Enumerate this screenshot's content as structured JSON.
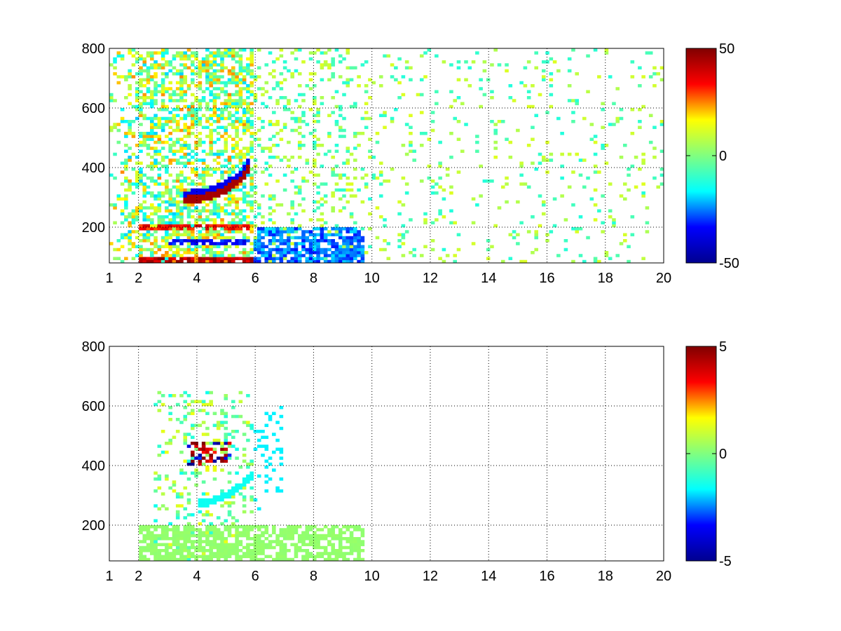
{
  "figure": {
    "background": "#ffffff"
  },
  "colormap": {
    "name": "jet",
    "stops": [
      "#00008f",
      "#0000ff",
      "#00ffff",
      "#80ff80",
      "#ffff00",
      "#ff0000",
      "#800000"
    ]
  },
  "chart_data": [
    {
      "type": "heatmap",
      "title": "",
      "xlabel": "",
      "ylabel": "",
      "xlim": [
        1,
        20
      ],
      "ylim": [
        80,
        800
      ],
      "xticks": [
        1,
        2,
        4,
        6,
        8,
        10,
        12,
        14,
        16,
        18,
        20
      ],
      "xtick_labels": [
        "1",
        "2",
        "4",
        "6",
        "8",
        "10",
        "12",
        "14",
        "16",
        "18",
        "20"
      ],
      "yticks": [
        200,
        400,
        600,
        800
      ],
      "ytick_labels": [
        "200",
        "400",
        "600",
        "800"
      ],
      "grid": true,
      "color_range": [
        -50,
        50
      ],
      "colorbar_ticks": [
        -50,
        0,
        50
      ],
      "colorbar_labels": [
        "-50",
        "0",
        "50"
      ],
      "colorbar_position": "right",
      "features": [
        {
          "desc": "arc",
          "x": [
            3.5,
            4.0,
            4.5,
            5.0,
            5.5,
            5.8
          ],
          "y": [
            290,
            295,
            305,
            325,
            360,
            400
          ],
          "value": 45
        },
        {
          "desc": "band",
          "y": 90,
          "x_range": [
            2.0,
            6.0
          ],
          "value": 50
        },
        {
          "desc": "band",
          "y": 200,
          "x_range": [
            2.0,
            6.0
          ],
          "value": 40
        },
        {
          "desc": "block",
          "x_range": [
            6.0,
            9.8
          ],
          "y_range": [
            80,
            200
          ],
          "value": -30
        },
        {
          "desc": "band",
          "y": 150,
          "x_range": [
            3.0,
            5.8
          ],
          "value": -40
        }
      ]
    },
    {
      "type": "heatmap",
      "title": "",
      "xlabel": "",
      "ylabel": "",
      "xlim": [
        1,
        20
      ],
      "ylim": [
        80,
        800
      ],
      "xticks": [
        1,
        2,
        4,
        6,
        8,
        10,
        12,
        14,
        16,
        18,
        20
      ],
      "xtick_labels": [
        "1",
        "2",
        "4",
        "6",
        "8",
        "10",
        "12",
        "14",
        "16",
        "18",
        "20"
      ],
      "yticks": [
        200,
        400,
        600,
        800
      ],
      "ytick_labels": [
        "200",
        "400",
        "600",
        "800"
      ],
      "grid": true,
      "color_range": [
        -5,
        5
      ],
      "colorbar_ticks": [
        -5,
        0,
        5
      ],
      "colorbar_labels": [
        "-5",
        "0",
        "5"
      ],
      "colorbar_position": "right",
      "features": [
        {
          "desc": "block",
          "x_range": [
            2.0,
            9.8
          ],
          "y_range": [
            80,
            200
          ],
          "value": 0.3
        },
        {
          "desc": "arc",
          "x": [
            4.0,
            4.5,
            5.0,
            5.5,
            6.0
          ],
          "y": [
            270,
            280,
            300,
            330,
            380
          ],
          "value": -1.5
        },
        {
          "desc": "cluster",
          "x_range": [
            3.7,
            5.2
          ],
          "y_range": [
            400,
            480
          ],
          "value": 5
        }
      ]
    }
  ]
}
